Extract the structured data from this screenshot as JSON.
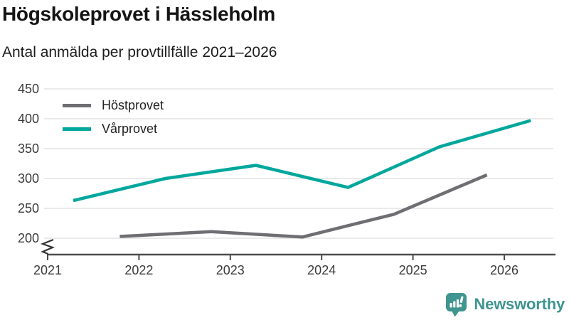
{
  "header": {
    "title": "Högskoleprovet i Hässleholm",
    "subtitle": "Antal anmälda per provtillfälle 2021–2026"
  },
  "legend": {
    "items": [
      {
        "label": "Höstprovet",
        "color": "#6e6e73"
      },
      {
        "label": "Vårprovet",
        "color": "#00a79c"
      }
    ]
  },
  "footer": {
    "brand": "Newsworthy",
    "brand_color": "#3f958f"
  },
  "chart_data": {
    "type": "line",
    "title": "Högskoleprovet i Hässleholm",
    "subtitle": "Antal anmälda per provtillfälle 2021–2026",
    "xlabel": "",
    "ylabel": "",
    "x_ticks": [
      2021,
      2022,
      2023,
      2024,
      2025,
      2026
    ],
    "y_ticks": [
      200,
      250,
      300,
      350,
      400,
      450
    ],
    "ylim": [
      200,
      450
    ],
    "xlim": [
      2021,
      2026.55
    ],
    "axis_break": true,
    "grid": "horizontal",
    "gridline_color": "#e7e7e7",
    "axis_color": "#4d4d4d",
    "legend_position": "top-left",
    "series": [
      {
        "name": "Höstprovet",
        "color": "#6e6e73",
        "points": [
          {
            "x": 2021.79,
            "y": 203
          },
          {
            "x": 2022.79,
            "y": 211
          },
          {
            "x": 2023.79,
            "y": 202
          },
          {
            "x": 2024.79,
            "y": 240
          },
          {
            "x": 2025.81,
            "y": 306
          }
        ]
      },
      {
        "name": "Vårprovet",
        "color": "#00a79c",
        "points": [
          {
            "x": 2021.28,
            "y": 263
          },
          {
            "x": 2022.29,
            "y": 300
          },
          {
            "x": 2023.28,
            "y": 322
          },
          {
            "x": 2024.29,
            "y": 285
          },
          {
            "x": 2025.29,
            "y": 353
          },
          {
            "x": 2026.29,
            "y": 397
          }
        ]
      }
    ]
  }
}
